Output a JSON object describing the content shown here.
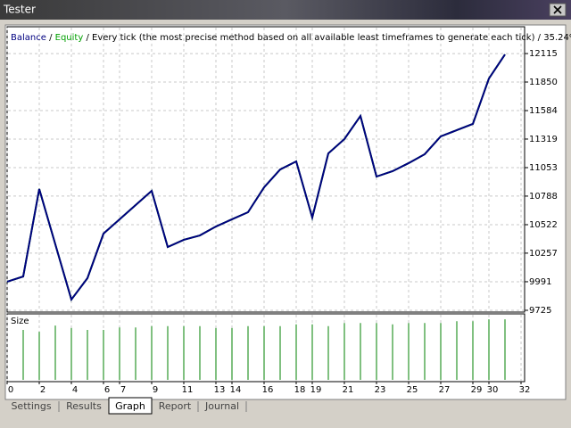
{
  "window": {
    "title": "Tester"
  },
  "tabs": [
    "Settings",
    "Results",
    "Graph",
    "Report",
    "Journal"
  ],
  "active_tab": 2,
  "chart_data": [
    {
      "type": "line",
      "legend_separator": "/",
      "description": "/ Every tick (the most precise method based on all available least timeframes to generate each tick) / 35.24%",
      "x": [
        0,
        1,
        2,
        3,
        4,
        5,
        6,
        7,
        8,
        9,
        10,
        11,
        12,
        13,
        14,
        15,
        16,
        17,
        18,
        19,
        20,
        21,
        22,
        23,
        24,
        25,
        26,
        27,
        28,
        29,
        30,
        31
      ],
      "series": [
        {
          "name": "Equity",
          "color": "#00a000",
          "values": [
            9991,
            10040,
            10854,
            10339,
            9825,
            10024,
            10439,
            10572,
            10704,
            10837,
            10314,
            10381,
            10422,
            10505,
            10572,
            10638,
            10870,
            11036,
            11111,
            10588,
            11186,
            11319,
            11534,
            10970,
            11020,
            11095,
            11178,
            11344,
            11402,
            11460,
            11883,
            12107
          ]
        },
        {
          "name": "Balance",
          "color": "#000080",
          "values": [
            9991,
            10040,
            10854,
            10339,
            9825,
            10024,
            10439,
            10572,
            10704,
            10837,
            10314,
            10381,
            10422,
            10505,
            10572,
            10638,
            10870,
            11036,
            11111,
            10588,
            11186,
            11319,
            11534,
            10970,
            11020,
            11095,
            11178,
            11344,
            11402,
            11460,
            11883,
            12107
          ]
        }
      ],
      "xlim": [
        0,
        32
      ],
      "ylim": [
        9725,
        12348
      ],
      "yticks": [
        12115,
        11850,
        11584,
        11319,
        11053,
        10788,
        10522,
        10257,
        9991,
        9725
      ],
      "grid": true
    },
    {
      "type": "bar",
      "title": "Size",
      "x": [
        1,
        2,
        3,
        4,
        5,
        6,
        7,
        8,
        9,
        10,
        11,
        12,
        13,
        14,
        15,
        16,
        17,
        18,
        19,
        20,
        21,
        22,
        23,
        24,
        25,
        26,
        27,
        28,
        29,
        30,
        31
      ],
      "values": [
        0.8,
        0.77,
        0.87,
        0.83,
        0.8,
        0.8,
        0.84,
        0.84,
        0.86,
        0.86,
        0.86,
        0.86,
        0.83,
        0.83,
        0.86,
        0.86,
        0.86,
        0.89,
        0.89,
        0.86,
        0.91,
        0.91,
        0.91,
        0.89,
        0.91,
        0.91,
        0.91,
        0.94,
        0.94,
        0.97,
        0.97
      ],
      "color": "#008000",
      "xlim": [
        0,
        32
      ],
      "ylim": [
        0,
        1
      ],
      "xticks": [
        0,
        2,
        4,
        6,
        7,
        9,
        11,
        13,
        14,
        16,
        18,
        19,
        21,
        23,
        25,
        27,
        29,
        30,
        32
      ]
    }
  ]
}
